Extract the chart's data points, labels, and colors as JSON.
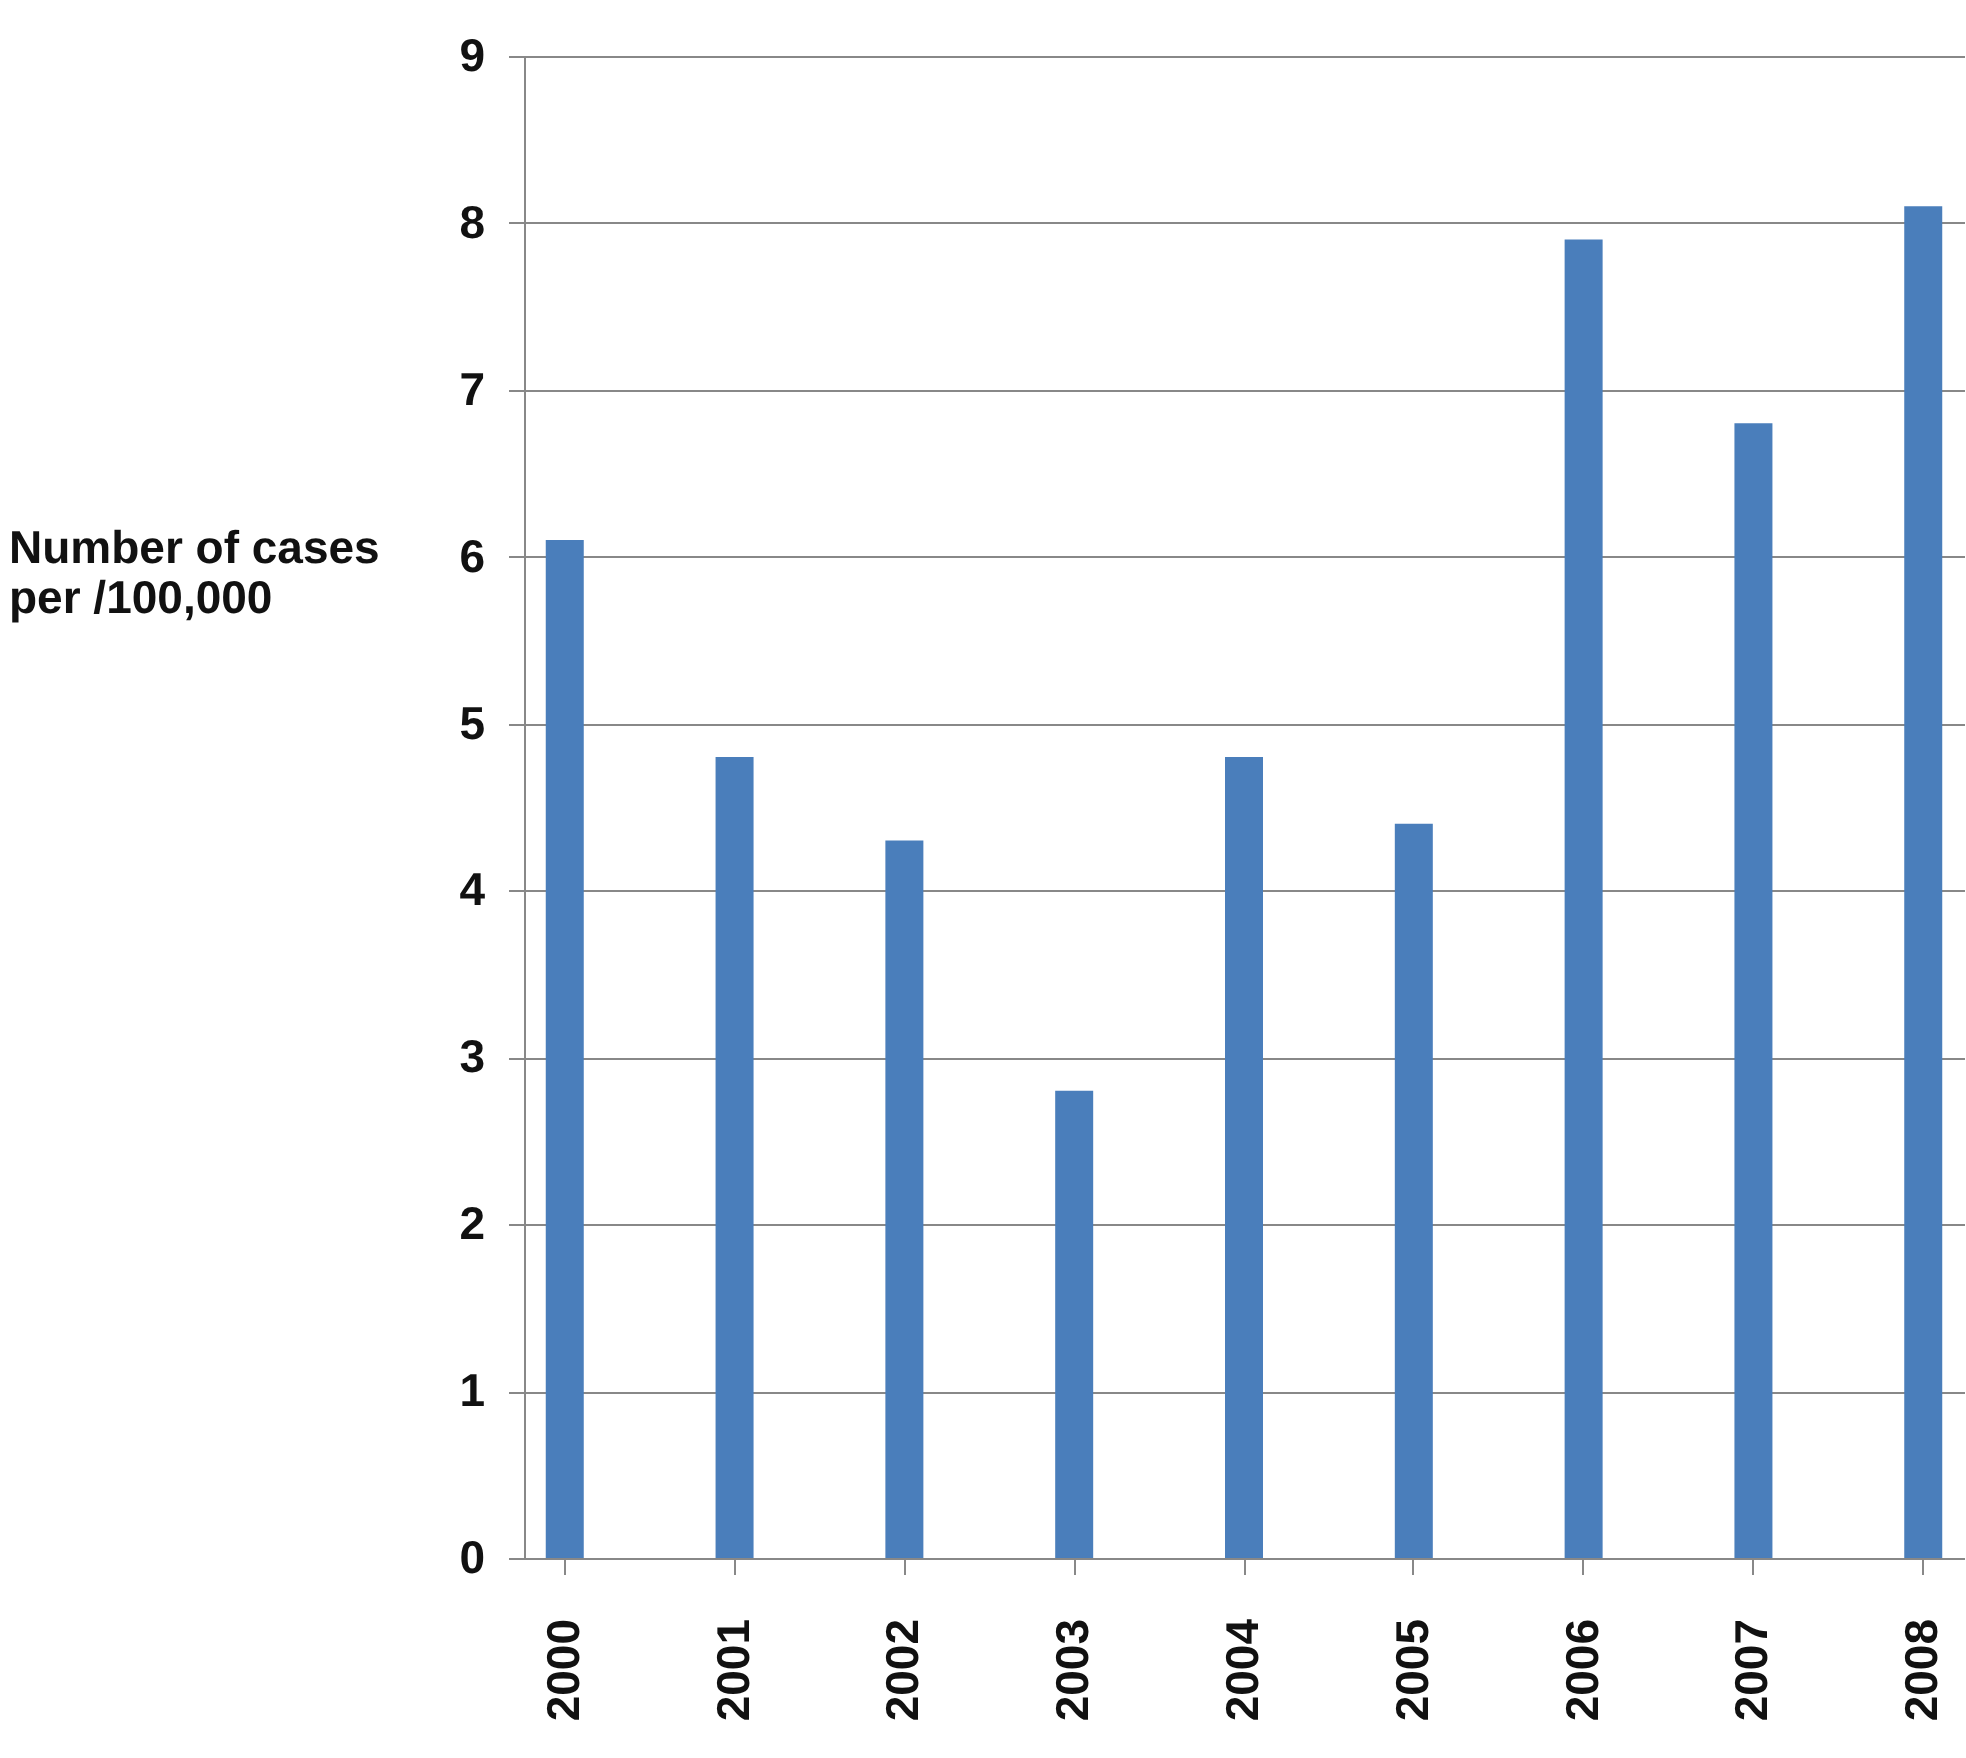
{
  "chart_data": {
    "type": "bar",
    "ylabel": "Number of cases per /100,000",
    "categories": [
      "2000",
      "2001",
      "2002",
      "2003",
      "2004",
      "2005",
      "2006",
      "2007",
      "2008"
    ],
    "values": [
      6.1,
      4.8,
      4.3,
      2.8,
      4.8,
      4.4,
      7.9,
      6.8,
      8.1
    ],
    "color": "#4a7ebb",
    "ylim": [
      0,
      9
    ],
    "yticks": [
      0,
      1,
      2,
      3,
      4,
      5,
      6,
      7,
      8,
      9
    ],
    "grid": "y"
  }
}
